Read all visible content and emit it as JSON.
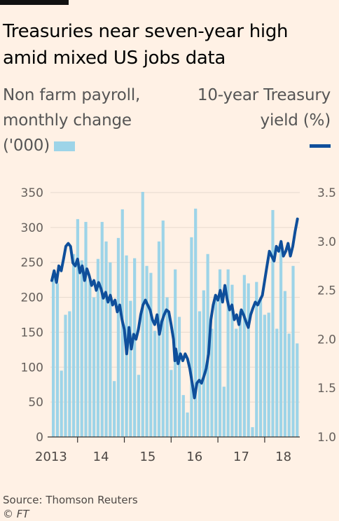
{
  "title": "Treasuries near seven-year high amid mixed US jobs data",
  "legend": {
    "bars_label": "Non farm payroll, monthly change ('000)",
    "line_label": "10-year Treasury yield (%)"
  },
  "source": "Source: Thomson Reuters",
  "credit": "© FT",
  "colors": {
    "bars": "#9dd4e8",
    "line": "#0f4f9b",
    "background": "#fff1e5",
    "grid": "#e6d9ce"
  },
  "chart_data": {
    "type": "bar-line-dual-axis",
    "x_ticks": [
      "2013",
      "14",
      "15",
      "16",
      "17",
      "18"
    ],
    "left_axis": {
      "ticks": [
        0,
        50,
        100,
        150,
        200,
        250,
        300,
        350
      ],
      "ylim": [
        0,
        350
      ]
    },
    "right_axis": {
      "ticks": [
        1.0,
        1.5,
        2.0,
        2.5,
        3.0,
        3.5
      ],
      "ylim": [
        1.0,
        3.5
      ]
    },
    "grid": true,
    "bars": {
      "name": "Non farm payroll, monthly change ('000)",
      "start": "2013-06",
      "frequency": "monthly",
      "values": [
        230,
        220,
        95,
        175,
        180,
        262,
        312,
        253,
        308,
        225,
        200,
        255,
        308,
        280,
        250,
        80,
        285,
        326,
        260,
        195,
        256,
        89,
        351,
        245,
        235,
        152,
        280,
        310,
        200,
        96,
        240,
        172,
        60,
        35,
        286,
        327,
        180,
        210,
        262,
        155,
        200,
        240,
        72,
        240,
        218,
        155,
        180,
        232,
        220,
        14,
        222,
        200,
        175,
        178,
        325,
        155,
        268,
        209,
        148,
        245,
        134
      ]
    },
    "line": {
      "name": "10-year Treasury yield (%)",
      "points": [
        [
          2013.45,
          2.6
        ],
        [
          2013.5,
          2.7
        ],
        [
          2013.55,
          2.58
        ],
        [
          2013.6,
          2.75
        ],
        [
          2013.65,
          2.7
        ],
        [
          2013.7,
          2.82
        ],
        [
          2013.75,
          2.95
        ],
        [
          2013.8,
          2.98
        ],
        [
          2013.85,
          2.95
        ],
        [
          2013.9,
          2.78
        ],
        [
          2013.95,
          2.75
        ],
        [
          2014.0,
          2.82
        ],
        [
          2014.05,
          2.68
        ],
        [
          2014.1,
          2.75
        ],
        [
          2014.15,
          2.6
        ],
        [
          2014.2,
          2.72
        ],
        [
          2014.25,
          2.65
        ],
        [
          2014.3,
          2.55
        ],
        [
          2014.35,
          2.6
        ],
        [
          2014.4,
          2.5
        ],
        [
          2014.45,
          2.58
        ],
        [
          2014.5,
          2.52
        ],
        [
          2014.55,
          2.42
        ],
        [
          2014.6,
          2.48
        ],
        [
          2014.65,
          2.38
        ],
        [
          2014.7,
          2.45
        ],
        [
          2014.75,
          2.35
        ],
        [
          2014.8,
          2.4
        ],
        [
          2014.85,
          2.28
        ],
        [
          2014.9,
          2.35
        ],
        [
          2014.95,
          2.2
        ],
        [
          2015.0,
          2.1
        ],
        [
          2015.05,
          1.85
        ],
        [
          2015.08,
          2.0
        ],
        [
          2015.1,
          2.12
        ],
        [
          2015.15,
          1.9
        ],
        [
          2015.2,
          2.05
        ],
        [
          2015.25,
          2.0
        ],
        [
          2015.3,
          2.1
        ],
        [
          2015.35,
          2.25
        ],
        [
          2015.4,
          2.35
        ],
        [
          2015.45,
          2.4
        ],
        [
          2015.5,
          2.35
        ],
        [
          2015.55,
          2.3
        ],
        [
          2015.6,
          2.2
        ],
        [
          2015.65,
          2.15
        ],
        [
          2015.7,
          2.25
        ],
        [
          2015.75,
          2.05
        ],
        [
          2015.8,
          2.18
        ],
        [
          2015.85,
          2.25
        ],
        [
          2015.9,
          2.3
        ],
        [
          2015.95,
          2.28
        ],
        [
          2016.0,
          2.15
        ],
        [
          2016.05,
          2.0
        ],
        [
          2016.08,
          1.78
        ],
        [
          2016.1,
          1.9
        ],
        [
          2016.15,
          1.75
        ],
        [
          2016.2,
          1.85
        ],
        [
          2016.25,
          1.78
        ],
        [
          2016.3,
          1.85
        ],
        [
          2016.35,
          1.8
        ],
        [
          2016.4,
          1.7
        ],
        [
          2016.45,
          1.55
        ],
        [
          2016.5,
          1.4
        ],
        [
          2016.55,
          1.55
        ],
        [
          2016.6,
          1.58
        ],
        [
          2016.65,
          1.55
        ],
        [
          2016.7,
          1.62
        ],
        [
          2016.75,
          1.7
        ],
        [
          2016.8,
          1.85
        ],
        [
          2016.85,
          2.2
        ],
        [
          2016.9,
          2.35
        ],
        [
          2016.95,
          2.45
        ],
        [
          2017.0,
          2.4
        ],
        [
          2017.05,
          2.5
        ],
        [
          2017.1,
          2.38
        ],
        [
          2017.15,
          2.55
        ],
        [
          2017.2,
          2.4
        ],
        [
          2017.25,
          2.3
        ],
        [
          2017.3,
          2.35
        ],
        [
          2017.35,
          2.2
        ],
        [
          2017.4,
          2.25
        ],
        [
          2017.45,
          2.15
        ],
        [
          2017.5,
          2.3
        ],
        [
          2017.55,
          2.25
        ],
        [
          2017.6,
          2.18
        ],
        [
          2017.65,
          2.12
        ],
        [
          2017.7,
          2.25
        ],
        [
          2017.75,
          2.32
        ],
        [
          2017.8,
          2.38
        ],
        [
          2017.85,
          2.35
        ],
        [
          2017.9,
          2.4
        ],
        [
          2017.95,
          2.45
        ],
        [
          2018.0,
          2.6
        ],
        [
          2018.05,
          2.75
        ],
        [
          2018.1,
          2.9
        ],
        [
          2018.15,
          2.85
        ],
        [
          2018.2,
          2.8
        ],
        [
          2018.25,
          2.95
        ],
        [
          2018.3,
          2.9
        ],
        [
          2018.35,
          3.0
        ],
        [
          2018.4,
          2.85
        ],
        [
          2018.45,
          2.9
        ],
        [
          2018.5,
          2.98
        ],
        [
          2018.55,
          2.85
        ],
        [
          2018.6,
          2.95
        ],
        [
          2018.65,
          3.1
        ],
        [
          2018.7,
          3.23
        ]
      ]
    }
  }
}
